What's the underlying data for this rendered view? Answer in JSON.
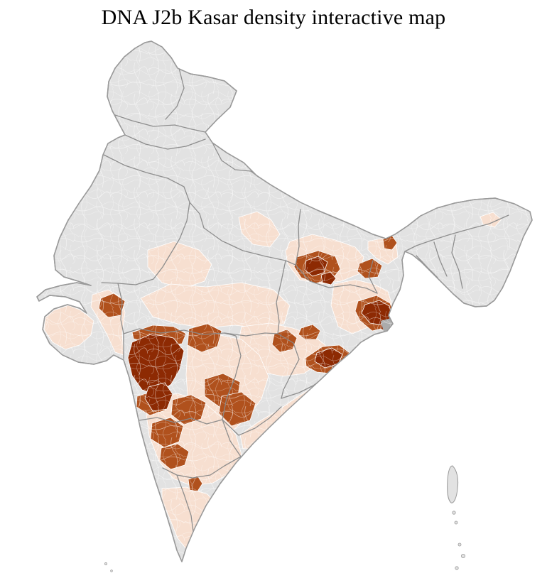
{
  "header": {
    "title": "DNA J2b Kasar density interactive map"
  },
  "map": {
    "colors": {
      "no_data": "#e2e2e2",
      "low": "#f7dfd0",
      "medium": "#b0511d",
      "high": "#8d2a03",
      "delta_shade": "#ababab",
      "state_border": "#8a8a8a",
      "district_border": "#ffffff",
      "outline": "#9a9a9a"
    },
    "density_scale": [
      "no_data",
      "low",
      "medium",
      "high"
    ]
  }
}
